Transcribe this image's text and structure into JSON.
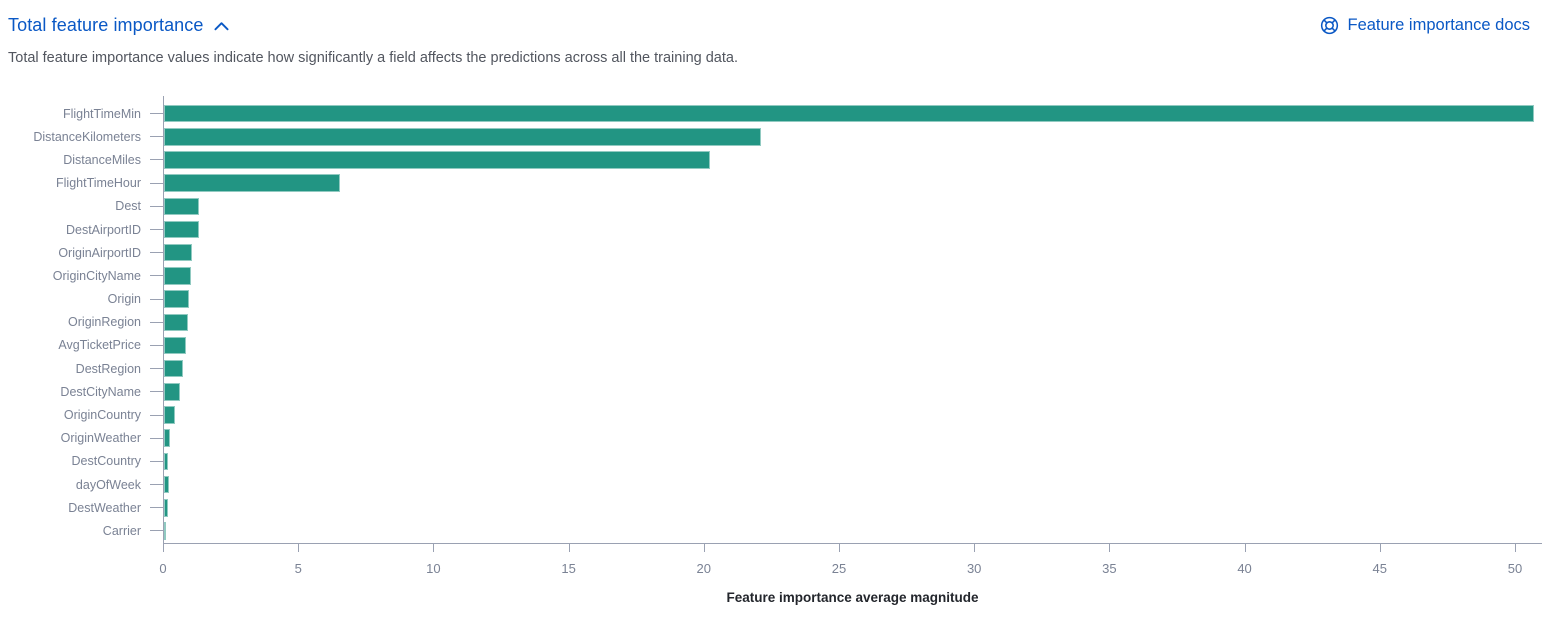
{
  "header": {
    "title": "Total feature importance",
    "docs_link_label": "Feature importance docs",
    "description": "Total feature importance values indicate how significantly a field affects the predictions across all the training data."
  },
  "icons": {
    "collapse_icon": "chevron-up-icon",
    "docs_icon": "life-ring-icon"
  },
  "colors": {
    "link_blue": "#0a58c5",
    "bar_teal": "#229583",
    "axis_line": "#9aa1b2",
    "label_gray": "#7a8294",
    "axis_title_dark": "#23262c"
  },
  "chart_data": {
    "type": "bar",
    "orientation": "horizontal",
    "title": "Total feature importance",
    "xlabel": "Feature importance average magnitude",
    "ylabel": "",
    "xlim": [
      0,
      51
    ],
    "x_ticks": [
      0,
      5,
      10,
      15,
      20,
      25,
      30,
      35,
      40,
      45,
      50
    ],
    "grid": false,
    "legend": false,
    "bar_color": "#229583",
    "categories": [
      "FlightTimeMin",
      "DistanceKilometers",
      "DistanceMiles",
      "FlightTimeHour",
      "Dest",
      "DestAirportID",
      "OriginAirportID",
      "OriginCityName",
      "Origin",
      "OriginRegion",
      "AvgTicketPrice",
      "DestRegion",
      "DestCityName",
      "OriginCountry",
      "OriginWeather",
      "DestCountry",
      "dayOfWeek",
      "DestWeather",
      "Carrier"
    ],
    "values": [
      50.7,
      22.1,
      20.2,
      6.5,
      1.3,
      1.28,
      1.05,
      1.0,
      0.93,
      0.87,
      0.82,
      0.72,
      0.6,
      0.42,
      0.21,
      0.16,
      0.2,
      0.15,
      0.07
    ]
  }
}
